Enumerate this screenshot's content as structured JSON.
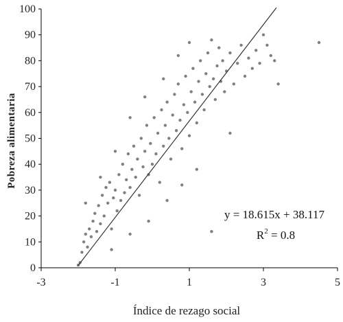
{
  "chart_data": {
    "type": "scatter",
    "title": "",
    "xlabel": "Índice de rezago social",
    "ylabel": "Pobreza alimentaria",
    "xlim": [
      -3,
      5
    ],
    "ylim": [
      0,
      100
    ],
    "x_ticks": [
      -3,
      -1,
      1,
      3,
      5
    ],
    "y_ticks": [
      0,
      10,
      20,
      30,
      40,
      50,
      60,
      70,
      80,
      90,
      100
    ],
    "x_tick_labels": [
      "-3",
      "-1",
      "1",
      "3",
      "5"
    ],
    "y_tick_labels": [
      "0",
      "10",
      "20",
      "30",
      "40",
      "50",
      "60",
      "70",
      "80",
      "90",
      "100"
    ],
    "point_color": "#808080",
    "line_color": "#333333",
    "regression": {
      "slope": 18.615,
      "intercept": 38.117,
      "r_squared": 0.8,
      "equation_label": "y = 18.615x + 38.117",
      "r2_prefix": "R",
      "r2_exponent": "2",
      "r2_suffix": " = 0.8",
      "x_start": -2.0,
      "x_end": 3.35
    },
    "series": [
      {
        "points": [
          [
            -2.0,
            1
          ],
          [
            -1.95,
            2
          ],
          [
            -1.9,
            6
          ],
          [
            -1.85,
            10
          ],
          [
            -1.8,
            13
          ],
          [
            -1.75,
            8
          ],
          [
            -1.7,
            15
          ],
          [
            -1.65,
            12
          ],
          [
            -1.6,
            18
          ],
          [
            -1.55,
            21
          ],
          [
            -1.5,
            14
          ],
          [
            -1.45,
            24
          ],
          [
            -1.4,
            17
          ],
          [
            -1.35,
            28
          ],
          [
            -1.3,
            20
          ],
          [
            -1.25,
            31
          ],
          [
            -1.2,
            25
          ],
          [
            -1.15,
            33
          ],
          [
            -1.1,
            15
          ],
          [
            -1.05,
            27
          ],
          [
            -1.0,
            30
          ],
          [
            -0.95,
            22
          ],
          [
            -0.9,
            36
          ],
          [
            -0.85,
            26
          ],
          [
            -0.8,
            40
          ],
          [
            -0.75,
            29
          ],
          [
            -0.7,
            34
          ],
          [
            -0.65,
            44
          ],
          [
            -0.6,
            31
          ],
          [
            -0.55,
            38
          ],
          [
            -0.5,
            47
          ],
          [
            -0.45,
            35
          ],
          [
            -0.4,
            42
          ],
          [
            -0.35,
            28
          ],
          [
            -0.3,
            50
          ],
          [
            -0.25,
            39
          ],
          [
            -0.2,
            45
          ],
          [
            -0.15,
            55
          ],
          [
            -0.1,
            36
          ],
          [
            -0.05,
            48
          ],
          [
            0.0,
            40
          ],
          [
            0.05,
            58
          ],
          [
            0.1,
            44
          ],
          [
            0.15,
            52
          ],
          [
            0.2,
            33
          ],
          [
            0.25,
            61
          ],
          [
            0.3,
            47
          ],
          [
            0.35,
            55
          ],
          [
            0.4,
            64
          ],
          [
            0.45,
            50
          ],
          [
            0.5,
            42
          ],
          [
            0.55,
            59
          ],
          [
            0.6,
            67
          ],
          [
            0.65,
            53
          ],
          [
            0.7,
            71
          ],
          [
            0.75,
            57
          ],
          [
            0.8,
            46
          ],
          [
            0.85,
            63
          ],
          [
            0.9,
            74
          ],
          [
            0.95,
            60
          ],
          [
            1.0,
            51
          ],
          [
            1.05,
            68
          ],
          [
            1.1,
            77
          ],
          [
            1.15,
            64
          ],
          [
            1.2,
            56
          ],
          [
            1.25,
            72
          ],
          [
            1.3,
            80
          ],
          [
            1.35,
            67
          ],
          [
            1.4,
            61
          ],
          [
            1.45,
            75
          ],
          [
            1.5,
            83
          ],
          [
            1.55,
            70
          ],
          [
            1.6,
            88
          ],
          [
            1.65,
            73
          ],
          [
            1.7,
            65
          ],
          [
            1.75,
            78
          ],
          [
            1.8,
            85
          ],
          [
            1.85,
            72
          ],
          [
            1.9,
            80
          ],
          [
            1.95,
            68
          ],
          [
            2.0,
            76
          ],
          [
            2.1,
            83
          ],
          [
            2.2,
            71
          ],
          [
            2.3,
            79
          ],
          [
            2.4,
            86
          ],
          [
            2.5,
            74
          ],
          [
            2.6,
            81
          ],
          [
            2.7,
            77
          ],
          [
            2.8,
            84
          ],
          [
            2.9,
            79
          ],
          [
            3.0,
            90
          ],
          [
            3.1,
            86
          ],
          [
            3.2,
            82
          ],
          [
            3.3,
            80
          ],
          [
            3.4,
            71
          ],
          [
            4.5,
            87
          ],
          [
            -1.1,
            7
          ],
          [
            -0.6,
            13
          ],
          [
            -0.1,
            18
          ],
          [
            0.4,
            26
          ],
          [
            0.8,
            32
          ],
          [
            1.2,
            38
          ],
          [
            1.6,
            14
          ],
          [
            2.1,
            52
          ],
          [
            -1.8,
            25
          ],
          [
            -1.4,
            35
          ],
          [
            -1.0,
            45
          ],
          [
            -0.6,
            58
          ],
          [
            -0.2,
            66
          ],
          [
            0.3,
            73
          ],
          [
            0.7,
            82
          ],
          [
            1.0,
            87
          ]
        ]
      }
    ]
  }
}
